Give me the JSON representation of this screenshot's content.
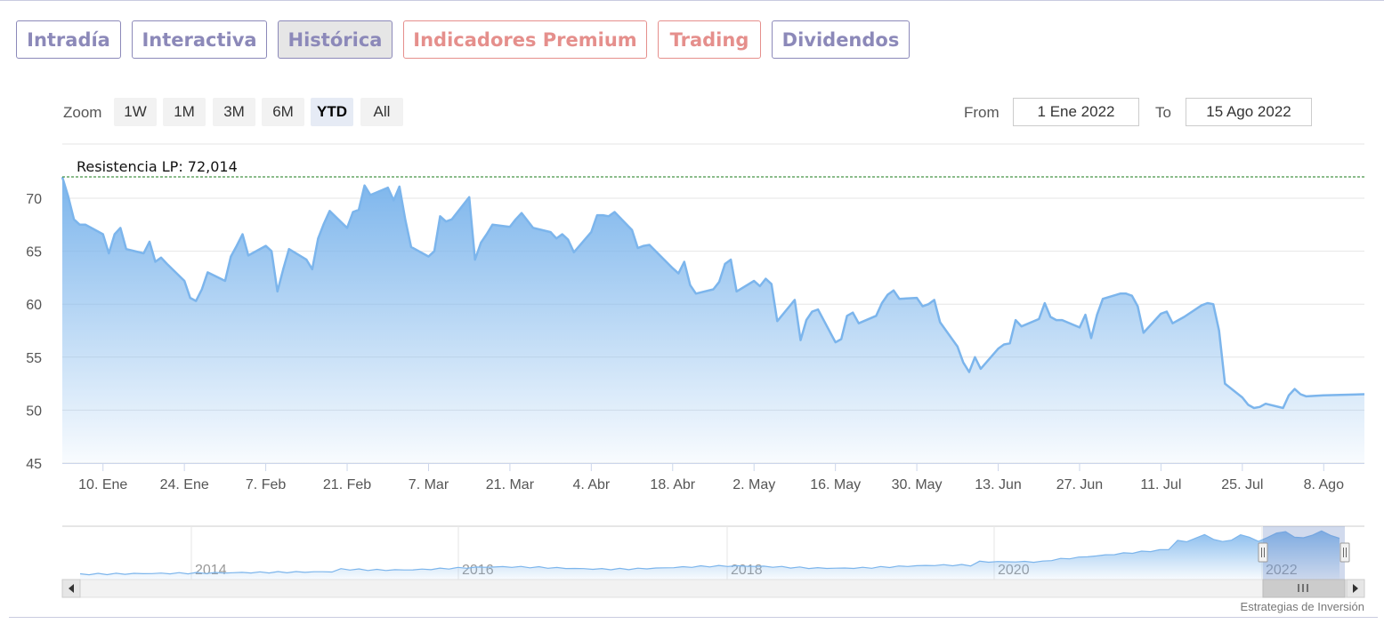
{
  "tabs": [
    {
      "label": "Intradía",
      "style": "purple",
      "active": false
    },
    {
      "label": "Interactiva",
      "style": "purple",
      "active": false
    },
    {
      "label": "Histórica",
      "style": "purple",
      "active": true
    },
    {
      "label": "Indicadores Premium",
      "style": "red",
      "active": false
    },
    {
      "label": "Trading",
      "style": "red",
      "active": false
    },
    {
      "label": "Dividendos",
      "style": "purple",
      "active": false
    }
  ],
  "zoom": {
    "label": "Zoom",
    "buttons": [
      {
        "label": "1W",
        "active": false
      },
      {
        "label": "1M",
        "active": false
      },
      {
        "label": "3M",
        "active": false
      },
      {
        "label": "6M",
        "active": false
      },
      {
        "label": "YTD",
        "active": true
      },
      {
        "label": "All",
        "active": false
      }
    ]
  },
  "range": {
    "from_label": "From",
    "from_value": "1 Ene 2022",
    "to_label": "To",
    "to_value": "15 Ago 2022"
  },
  "credit": "Estrategias de Inversión",
  "colors": {
    "line": "#7cb5ec",
    "area_top": "#7cb5ec",
    "resistance": "#1a7a1a",
    "grid": "#e6e6e6",
    "tab_purple": "#8c89b9",
    "tab_red": "#e58f8c"
  },
  "chart_data": {
    "type": "area",
    "title": "",
    "xlabel": "",
    "ylabel": "",
    "ylim": [
      45,
      72.5
    ],
    "yticks": [
      45,
      50,
      55,
      60,
      65,
      70
    ],
    "xlim": [
      "2022-01-03",
      "2022-08-15"
    ],
    "xticks": [
      {
        "date": "2022-01-10",
        "label": "10. Ene"
      },
      {
        "date": "2022-01-24",
        "label": "24. Ene"
      },
      {
        "date": "2022-02-07",
        "label": "7. Feb"
      },
      {
        "date": "2022-02-21",
        "label": "21. Feb"
      },
      {
        "date": "2022-03-07",
        "label": "7. Mar"
      },
      {
        "date": "2022-03-21",
        "label": "21. Mar"
      },
      {
        "date": "2022-04-04",
        "label": "4. Abr"
      },
      {
        "date": "2022-04-18",
        "label": "18. Abr"
      },
      {
        "date": "2022-05-02",
        "label": "2. May"
      },
      {
        "date": "2022-05-16",
        "label": "16. May"
      },
      {
        "date": "2022-05-30",
        "label": "30. May"
      },
      {
        "date": "2022-06-13",
        "label": "13. Jun"
      },
      {
        "date": "2022-06-27",
        "label": "27. Jun"
      },
      {
        "date": "2022-07-11",
        "label": "11. Jul"
      },
      {
        "date": "2022-07-25",
        "label": "25. Jul"
      },
      {
        "date": "2022-08-08",
        "label": "8. Ago"
      }
    ],
    "resistance": {
      "label": "Resistencia LP: 72,014",
      "value": 72.014
    },
    "series": [
      {
        "values": [
          [
            "2022-01-03",
            72.0
          ],
          [
            "2022-01-04",
            70.2
          ],
          [
            "2022-01-05",
            68.0
          ],
          [
            "2022-01-06",
            67.5
          ],
          [
            "2022-01-07",
            67.5
          ],
          [
            "2022-01-10",
            66.6
          ],
          [
            "2022-01-11",
            64.8
          ],
          [
            "2022-01-12",
            66.6
          ],
          [
            "2022-01-13",
            67.2
          ],
          [
            "2022-01-14",
            65.2
          ],
          [
            "2022-01-17",
            64.8
          ],
          [
            "2022-01-18",
            65.9
          ],
          [
            "2022-01-19",
            64.0
          ],
          [
            "2022-01-20",
            64.4
          ],
          [
            "2022-01-21",
            63.8
          ],
          [
            "2022-01-24",
            62.2
          ],
          [
            "2022-01-25",
            60.6
          ],
          [
            "2022-01-26",
            60.3
          ],
          [
            "2022-01-27",
            61.4
          ],
          [
            "2022-01-28",
            63.0
          ],
          [
            "2022-01-31",
            62.2
          ],
          [
            "2022-02-01",
            64.5
          ],
          [
            "2022-02-02",
            65.5
          ],
          [
            "2022-02-03",
            66.6
          ],
          [
            "2022-02-04",
            64.6
          ],
          [
            "2022-02-07",
            65.5
          ],
          [
            "2022-02-08",
            65.0
          ],
          [
            "2022-02-09",
            61.2
          ],
          [
            "2022-02-10",
            63.3
          ],
          [
            "2022-02-11",
            65.2
          ],
          [
            "2022-02-14",
            64.2
          ],
          [
            "2022-02-15",
            63.3
          ],
          [
            "2022-02-16",
            66.2
          ],
          [
            "2022-02-17",
            67.6
          ],
          [
            "2022-02-18",
            68.8
          ],
          [
            "2022-02-21",
            67.2
          ],
          [
            "2022-02-22",
            68.7
          ],
          [
            "2022-02-23",
            68.9
          ],
          [
            "2022-02-24",
            71.2
          ],
          [
            "2022-02-25",
            70.3
          ],
          [
            "2022-02-28",
            71.0
          ],
          [
            "2022-03-01",
            69.8
          ],
          [
            "2022-03-02",
            71.1
          ],
          [
            "2022-03-03",
            68.0
          ],
          [
            "2022-03-04",
            65.4
          ],
          [
            "2022-03-07",
            64.5
          ],
          [
            "2022-03-08",
            65.0
          ],
          [
            "2022-03-09",
            68.3
          ],
          [
            "2022-03-10",
            67.8
          ],
          [
            "2022-03-11",
            68.0
          ],
          [
            "2022-03-14",
            70.1
          ],
          [
            "2022-03-15",
            64.2
          ],
          [
            "2022-03-16",
            65.8
          ],
          [
            "2022-03-17",
            66.6
          ],
          [
            "2022-03-18",
            67.5
          ],
          [
            "2022-03-21",
            67.3
          ],
          [
            "2022-03-22",
            68.0
          ],
          [
            "2022-03-23",
            68.6
          ],
          [
            "2022-03-24",
            67.9
          ],
          [
            "2022-03-25",
            67.2
          ],
          [
            "2022-03-28",
            66.8
          ],
          [
            "2022-03-29",
            66.2
          ],
          [
            "2022-03-30",
            66.6
          ],
          [
            "2022-03-31",
            66.1
          ],
          [
            "2022-04-01",
            64.9
          ],
          [
            "2022-04-04",
            66.8
          ],
          [
            "2022-04-05",
            68.4
          ],
          [
            "2022-04-06",
            68.4
          ],
          [
            "2022-04-07",
            68.3
          ],
          [
            "2022-04-08",
            68.7
          ],
          [
            "2022-04-11",
            67.0
          ],
          [
            "2022-04-12",
            65.3
          ],
          [
            "2022-04-13",
            65.5
          ],
          [
            "2022-04-14",
            65.6
          ],
          [
            "2022-04-18",
            63.4
          ],
          [
            "2022-04-19",
            62.9
          ],
          [
            "2022-04-20",
            64.0
          ],
          [
            "2022-04-21",
            61.8
          ],
          [
            "2022-04-22",
            61.0
          ],
          [
            "2022-04-25",
            61.4
          ],
          [
            "2022-04-26",
            62.1
          ],
          [
            "2022-04-27",
            63.8
          ],
          [
            "2022-04-28",
            64.2
          ],
          [
            "2022-04-29",
            61.2
          ],
          [
            "2022-05-02",
            62.2
          ],
          [
            "2022-05-03",
            61.7
          ],
          [
            "2022-05-04",
            62.4
          ],
          [
            "2022-05-05",
            61.9
          ],
          [
            "2022-05-06",
            58.4
          ],
          [
            "2022-05-09",
            60.4
          ],
          [
            "2022-05-10",
            56.6
          ],
          [
            "2022-05-11",
            58.5
          ],
          [
            "2022-05-12",
            59.3
          ],
          [
            "2022-05-13",
            59.5
          ],
          [
            "2022-05-16",
            56.4
          ],
          [
            "2022-05-17",
            56.7
          ],
          [
            "2022-05-18",
            58.9
          ],
          [
            "2022-05-19",
            59.2
          ],
          [
            "2022-05-20",
            58.2
          ],
          [
            "2022-05-23",
            58.9
          ],
          [
            "2022-05-24",
            60.1
          ],
          [
            "2022-05-25",
            60.9
          ],
          [
            "2022-05-26",
            61.3
          ],
          [
            "2022-05-27",
            60.5
          ],
          [
            "2022-05-30",
            60.6
          ],
          [
            "2022-05-31",
            59.8
          ],
          [
            "2022-06-01",
            60.0
          ],
          [
            "2022-06-02",
            60.4
          ],
          [
            "2022-06-03",
            58.3
          ],
          [
            "2022-06-06",
            56.0
          ],
          [
            "2022-06-07",
            54.5
          ],
          [
            "2022-06-08",
            53.6
          ],
          [
            "2022-06-09",
            55.0
          ],
          [
            "2022-06-10",
            53.9
          ],
          [
            "2022-06-13",
            55.8
          ],
          [
            "2022-06-14",
            56.2
          ],
          [
            "2022-06-15",
            56.3
          ],
          [
            "2022-06-16",
            58.5
          ],
          [
            "2022-06-17",
            57.9
          ],
          [
            "2022-06-20",
            58.6
          ],
          [
            "2022-06-21",
            60.1
          ],
          [
            "2022-06-22",
            58.8
          ],
          [
            "2022-06-23",
            58.5
          ],
          [
            "2022-06-24",
            58.5
          ],
          [
            "2022-06-27",
            57.8
          ],
          [
            "2022-06-28",
            59.0
          ],
          [
            "2022-06-29",
            56.8
          ],
          [
            "2022-06-30",
            59.0
          ],
          [
            "2022-07-01",
            60.5
          ],
          [
            "2022-07-04",
            61.0
          ],
          [
            "2022-07-05",
            61.0
          ],
          [
            "2022-07-06",
            60.8
          ],
          [
            "2022-07-07",
            59.8
          ],
          [
            "2022-07-08",
            57.3
          ],
          [
            "2022-07-11",
            59.1
          ],
          [
            "2022-07-12",
            59.3
          ],
          [
            "2022-07-13",
            58.2
          ],
          [
            "2022-07-14",
            58.5
          ],
          [
            "2022-07-15",
            58.8
          ],
          [
            "2022-07-18",
            59.9
          ],
          [
            "2022-07-19",
            60.1
          ],
          [
            "2022-07-20",
            60.0
          ],
          [
            "2022-07-21",
            57.5
          ],
          [
            "2022-07-22",
            52.5
          ],
          [
            "2022-07-25",
            51.2
          ],
          [
            "2022-07-26",
            50.5
          ],
          [
            "2022-07-27",
            50.2
          ],
          [
            "2022-07-28",
            50.3
          ],
          [
            "2022-07-29",
            50.6
          ],
          [
            "2022-08-01",
            50.2
          ],
          [
            "2022-08-02",
            51.4
          ],
          [
            "2022-08-03",
            52.0
          ],
          [
            "2022-08-04",
            51.5
          ],
          [
            "2022-08-05",
            51.3
          ],
          [
            "2022-08-08",
            51.4
          ],
          [
            "2022-08-15",
            51.5
          ]
        ]
      }
    ],
    "navigator": {
      "year_labels": [
        "2014",
        "2016",
        "2018",
        "2020",
        "2022"
      ],
      "selection": [
        "2022-01-03",
        "2022-08-15"
      ]
    }
  }
}
